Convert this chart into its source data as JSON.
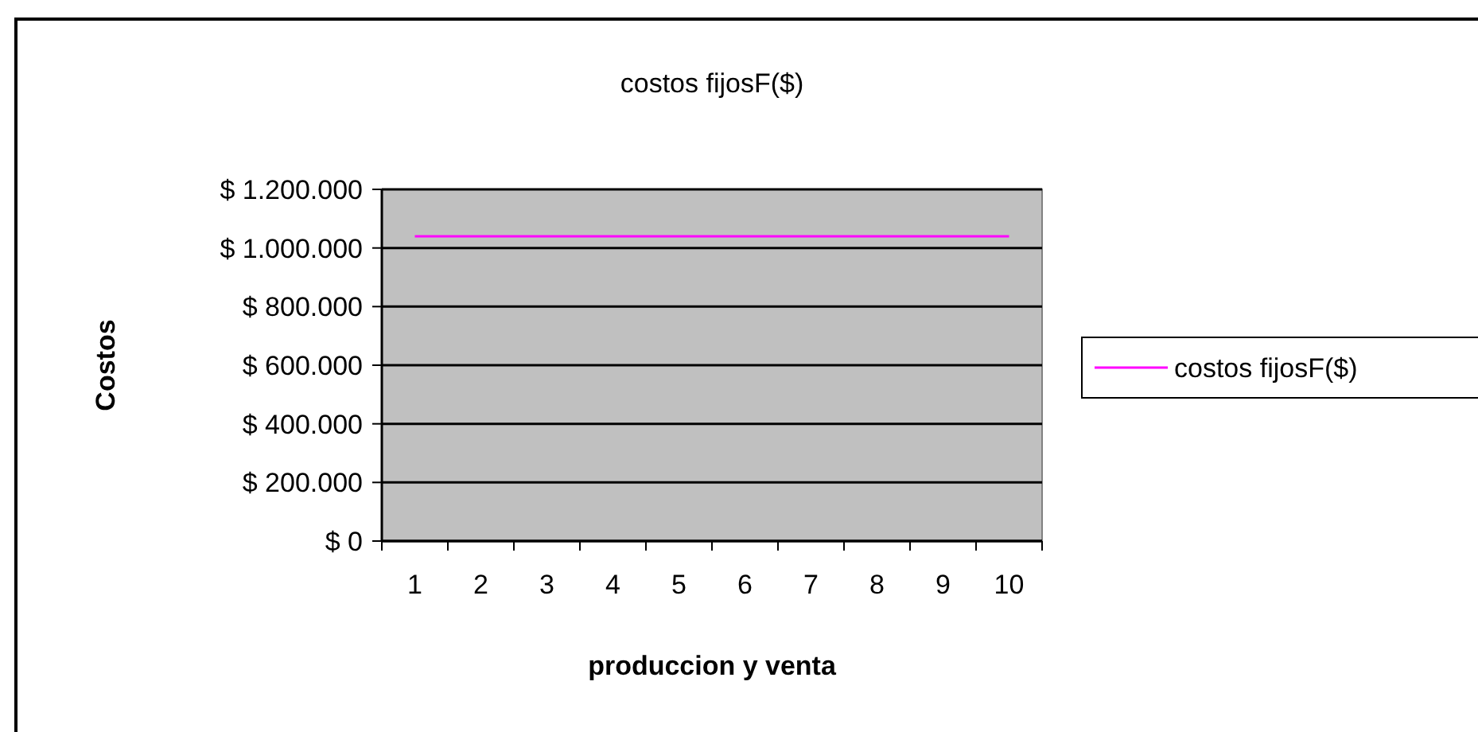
{
  "chart_data": {
    "type": "line",
    "title": "costos fijosF($)",
    "xlabel": "produccion y venta",
    "ylabel": "Costos",
    "categories": [
      "1",
      "2",
      "3",
      "4",
      "5",
      "6",
      "7",
      "8",
      "9",
      "10"
    ],
    "series": [
      {
        "name": "costos fijosF($)",
        "color": "#ff00ff",
        "values": [
          1040000,
          1040000,
          1040000,
          1040000,
          1040000,
          1040000,
          1040000,
          1040000,
          1040000,
          1040000
        ]
      }
    ],
    "ylim": [
      0,
      1200000
    ],
    "yticks": [
      {
        "value": 0,
        "label": "$ 0"
      },
      {
        "value": 200000,
        "label": "$ 200.000"
      },
      {
        "value": 400000,
        "label": "$ 400.000"
      },
      {
        "value": 600000,
        "label": "$ 600.000"
      },
      {
        "value": 800000,
        "label": "$ 800.000"
      },
      {
        "value": 1000000,
        "label": "$ 1.000.000"
      },
      {
        "value": 1200000,
        "label": "$ 1.200.000"
      }
    ],
    "grid": "y",
    "legend": "right",
    "marker": "none",
    "line_style": "solid"
  }
}
